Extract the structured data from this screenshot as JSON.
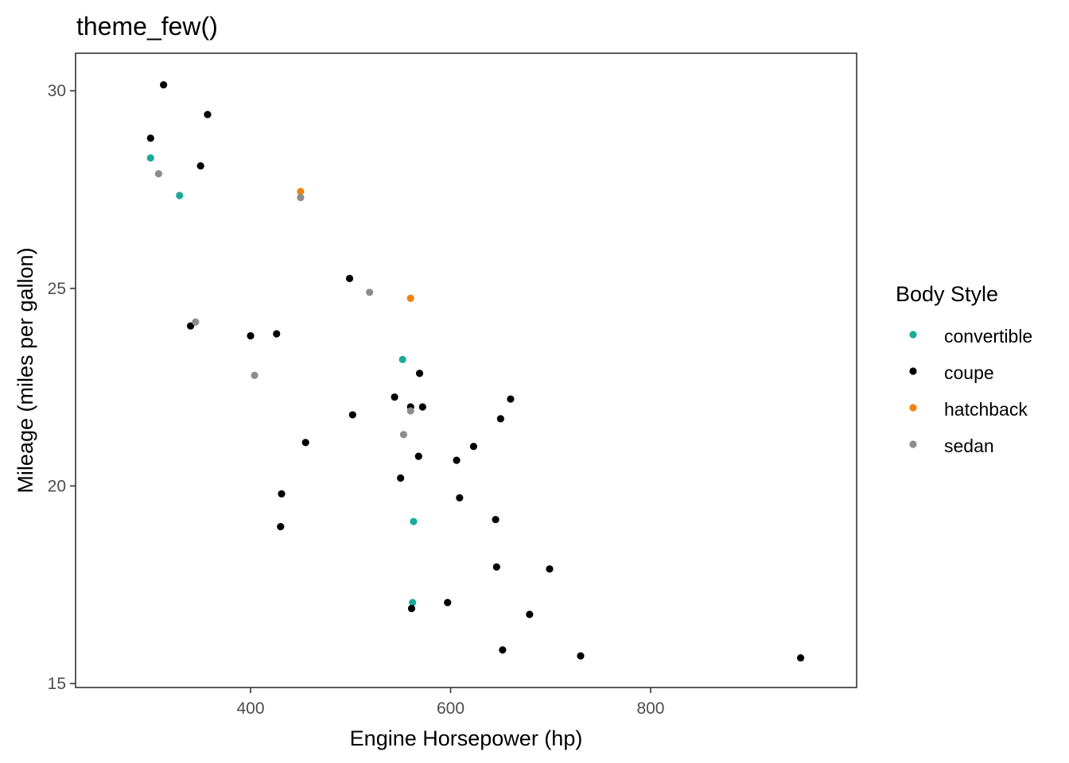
{
  "chart_data": {
    "type": "scatter",
    "title": "theme_few()",
    "xlabel": "Engine Horsepower (hp)",
    "ylabel": "Mileage (miles per gallon)",
    "xlim": [
      225,
      1006
    ],
    "ylim": [
      14.9,
      30.95
    ],
    "xticks": [
      400,
      600,
      800
    ],
    "yticks": [
      15,
      20,
      25,
      30
    ],
    "grid": false,
    "legend": {
      "title": "Body Style",
      "position": "right",
      "entries": [
        "convertible",
        "coupe",
        "hatchback",
        "sedan"
      ]
    },
    "colors": {
      "convertible": "#1aaa98",
      "coupe": "#000000",
      "hatchback": "#f0820f",
      "sedan": "#8c8c8c"
    },
    "series": [
      {
        "name": "convertible",
        "points": [
          [
            300,
            28.3
          ],
          [
            329,
            27.35
          ],
          [
            552,
            23.2
          ],
          [
            563,
            19.1
          ],
          [
            562,
            17.05
          ]
        ]
      },
      {
        "name": "coupe",
        "points": [
          [
            313,
            30.15
          ],
          [
            357,
            29.4
          ],
          [
            300,
            28.8
          ],
          [
            350,
            28.1
          ],
          [
            499,
            25.25
          ],
          [
            340,
            24.05
          ],
          [
            400,
            23.8
          ],
          [
            426,
            23.85
          ],
          [
            569,
            22.85
          ],
          [
            660,
            22.2
          ],
          [
            544,
            22.25
          ],
          [
            560,
            22.0
          ],
          [
            572,
            22.0
          ],
          [
            502,
            21.8
          ],
          [
            650,
            21.7
          ],
          [
            455,
            21.1
          ],
          [
            623,
            21.0
          ],
          [
            568,
            20.75
          ],
          [
            606,
            20.65
          ],
          [
            550,
            20.2
          ],
          [
            431,
            19.8
          ],
          [
            609,
            19.7
          ],
          [
            645,
            19.15
          ],
          [
            430,
            18.97
          ],
          [
            646,
            17.95
          ],
          [
            699,
            17.9
          ],
          [
            597,
            17.05
          ],
          [
            561,
            16.9
          ],
          [
            679,
            16.75
          ],
          [
            652,
            15.85
          ],
          [
            730,
            15.7
          ],
          [
            950,
            15.65
          ]
        ]
      },
      {
        "name": "hatchback",
        "points": [
          [
            450,
            27.45
          ],
          [
            560,
            24.75
          ]
        ]
      },
      {
        "name": "sedan",
        "points": [
          [
            308,
            27.9
          ],
          [
            450,
            27.3
          ],
          [
            519,
            24.9
          ],
          [
            345,
            24.15
          ],
          [
            404,
            22.8
          ],
          [
            553,
            21.3
          ],
          [
            560,
            21.9
          ]
        ]
      }
    ]
  }
}
